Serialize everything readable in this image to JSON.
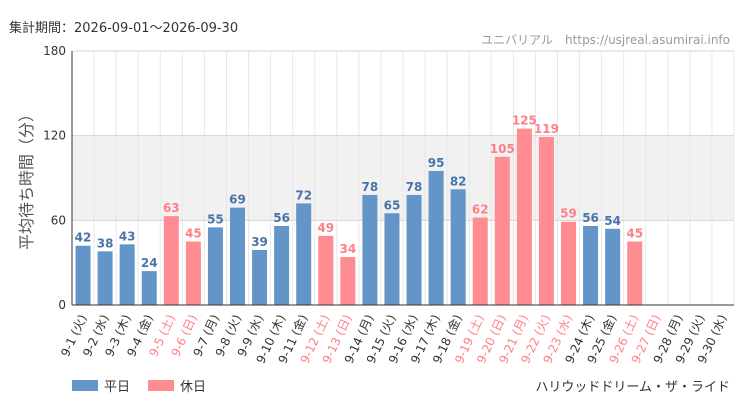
{
  "header": {
    "period": "集計期間：2026-09-01〜2026-09-30",
    "site": "ユニバリアル　https://usjreal.asumirai.info"
  },
  "footer": {
    "ride": "ハリウッドドリーム・ザ・ライド"
  },
  "colors": {
    "weekday": "#6495c8",
    "holiday": "#ff8c90",
    "weekday_label": "#4a74a8",
    "holiday_label": "#ff7f86"
  },
  "chart_data": {
    "type": "bar",
    "ylabel": "平均待ち時間（分）",
    "ylim": [
      0,
      180
    ],
    "yticks": [
      0,
      60,
      120,
      180
    ],
    "shaded_band": [
      60,
      120
    ],
    "legend": [
      {
        "name": "平日",
        "kind": "weekday"
      },
      {
        "name": "休日",
        "kind": "holiday"
      }
    ],
    "categories": [
      "9-1 (火)",
      "9-2 (水)",
      "9-3 (木)",
      "9-4 (金)",
      "9-5 (土)",
      "9-6 (日)",
      "9-7 (月)",
      "9-8 (火)",
      "9-9 (水)",
      "9-10 (木)",
      "9-11 (金)",
      "9-12 (土)",
      "9-13 (日)",
      "9-14 (月)",
      "9-15 (火)",
      "9-16 (水)",
      "9-17 (木)",
      "9-18 (金)",
      "9-19 (土)",
      "9-20 (日)",
      "9-21 (月)",
      "9-22 (火)",
      "9-23 (水)",
      "9-24 (木)",
      "9-25 (金)",
      "9-26 (土)",
      "9-27 (日)",
      "9-28 (月)",
      "9-29 (火)",
      "9-30 (水)"
    ],
    "values": [
      42,
      38,
      43,
      24,
      63,
      45,
      55,
      69,
      39,
      56,
      72,
      49,
      34,
      78,
      65,
      78,
      95,
      82,
      62,
      105,
      125,
      119,
      59,
      56,
      54,
      45,
      null,
      null,
      null,
      null
    ],
    "kind": [
      "weekday",
      "weekday",
      "weekday",
      "weekday",
      "holiday",
      "holiday",
      "weekday",
      "weekday",
      "weekday",
      "weekday",
      "weekday",
      "holiday",
      "holiday",
      "weekday",
      "weekday",
      "weekday",
      "weekday",
      "weekday",
      "holiday",
      "holiday",
      "holiday",
      "holiday",
      "holiday",
      "weekday",
      "weekday",
      "holiday",
      "holiday",
      "weekday",
      "weekday",
      "weekday"
    ]
  }
}
